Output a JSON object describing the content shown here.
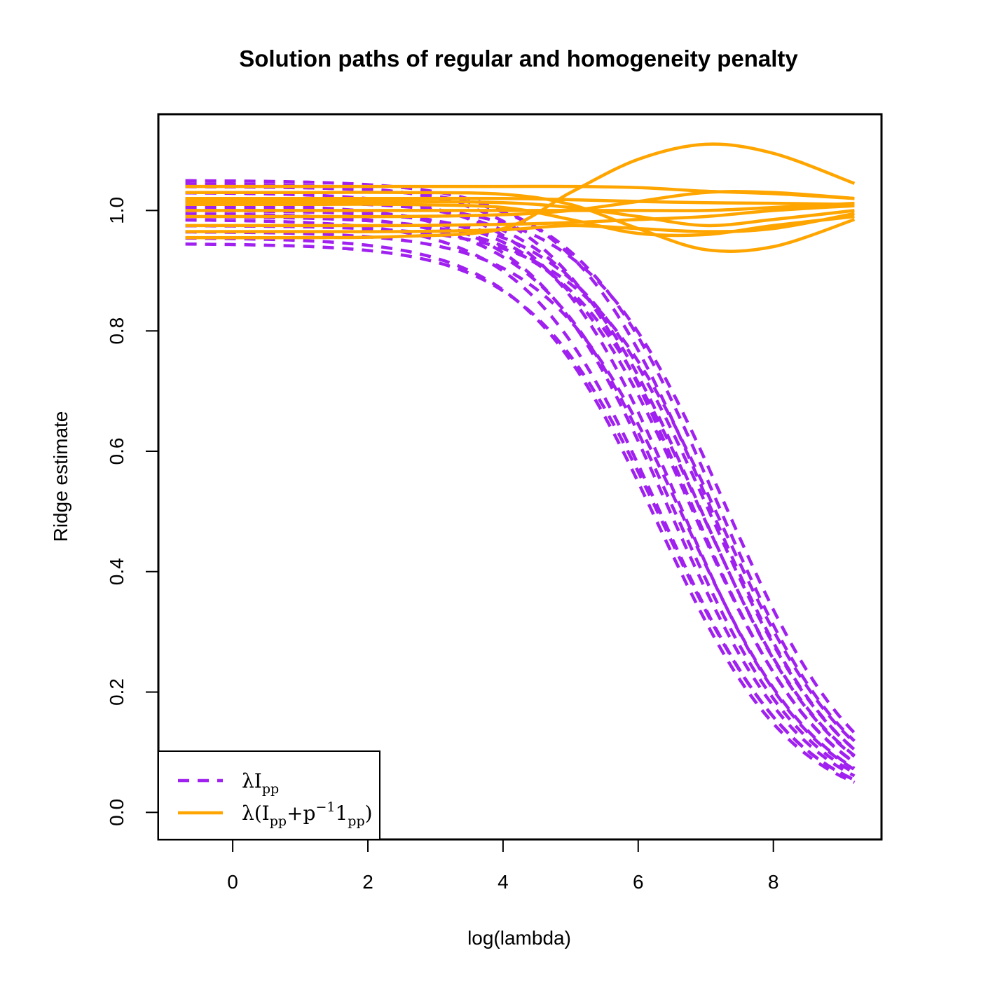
{
  "chart_data": {
    "type": "line",
    "title": "Solution paths of regular and homogeneity penalty",
    "xlabel": "log(lambda)",
    "ylabel": "Ridge estimate",
    "xlim": [
      -1.1,
      9.6
    ],
    "ylim": [
      -0.045,
      1.16
    ],
    "x_ticks": [
      0,
      2,
      4,
      6,
      8
    ],
    "x_tick_labels": [
      "0",
      "2",
      "4",
      "6",
      "8"
    ],
    "y_ticks": [
      0.0,
      0.2,
      0.4,
      0.6,
      0.8,
      1.0
    ],
    "y_tick_labels": [
      "0.0",
      "0.2",
      "0.4",
      "0.6",
      "0.8",
      "1.0"
    ],
    "grid": false,
    "legend": {
      "placement": "bottom-left",
      "entries": [
        {
          "label": "λI_pp",
          "color": "#A020F0",
          "style": "dashed"
        },
        {
          "label": "λ(I_pp+p^-1 1_pp)",
          "color": "#FFA500",
          "style": "solid"
        }
      ]
    },
    "x_range": [
      -0.7,
      9.2
    ],
    "series_groups": [
      {
        "name": "λI_pp",
        "color": "#A020F0",
        "style": "dashed",
        "model": "b0 / (1 + exp(x - c))",
        "b0": [
          1.05,
          1.045,
          1.04,
          1.03,
          1.02,
          1.015,
          1.01,
          1.005,
          1.0,
          0.995,
          0.99,
          0.985,
          0.975,
          0.965,
          0.955,
          0.945
        ],
        "c": [
          7.0,
          6.75,
          7.15,
          6.6,
          6.9,
          7.3,
          6.45,
          6.8,
          7.05,
          6.55,
          6.95,
          6.35,
          7.2,
          6.7,
          6.3,
          6.4
        ]
      },
      {
        "name": "λ(I_pp+p^-1 1_pp)",
        "color": "#FFA500",
        "style": "solid",
        "series": [
          {
            "x": [
              -0.7,
              1.0,
              2.5,
              4.0,
              5.0,
              6.0,
              7.0,
              8.0,
              9.2
            ],
            "y": [
              0.955,
              0.955,
              0.957,
              0.97,
              1.03,
              1.085,
              1.11,
              1.095,
              1.045
            ]
          },
          {
            "x": [
              -0.7,
              1.0,
              2.5,
              4.0,
              5.0,
              6.0,
              7.0,
              8.0,
              9.2
            ],
            "y": [
              1.04,
              1.04,
              1.04,
              1.04,
              1.04,
              1.038,
              1.032,
              1.028,
              1.02
            ]
          },
          {
            "x": [
              -0.7,
              1.0,
              2.5,
              4.0,
              5.0,
              6.0,
              7.0,
              8.0,
              9.2
            ],
            "y": [
              1.03,
              1.03,
              1.03,
              1.027,
              1.01,
              0.97,
              0.935,
              0.94,
              0.985
            ]
          },
          {
            "x": [
              -0.7,
              1.0,
              2.5,
              4.0,
              5.0,
              6.0,
              7.0,
              8.0,
              9.2
            ],
            "y": [
              1.02,
              1.02,
              1.02,
              1.02,
              1.018,
              1.015,
              1.013,
              1.012,
              1.01
            ]
          },
          {
            "x": [
              -0.7,
              1.0,
              2.5,
              4.0,
              5.0,
              6.0,
              7.0,
              8.0,
              9.2
            ],
            "y": [
              1.01,
              1.01,
              1.01,
              1.005,
              0.985,
              0.962,
              0.96,
              0.975,
              0.99
            ]
          },
          {
            "x": [
              -0.7,
              1.0,
              2.5,
              4.0,
              5.0,
              6.0,
              7.0,
              8.0,
              9.2
            ],
            "y": [
              1.0,
              1.0,
              1.0,
              1.0,
              1.0,
              1.0,
              1.0,
              1.005,
              1.012
            ]
          },
          {
            "x": [
              -0.7,
              1.0,
              2.5,
              4.0,
              5.0,
              6.0,
              7.0,
              8.0,
              9.2
            ],
            "y": [
              0.99,
              0.99,
              0.99,
              0.993,
              1.0,
              1.015,
              1.03,
              1.03,
              1.02
            ]
          },
          {
            "x": [
              -0.7,
              1.0,
              2.5,
              4.0,
              5.0,
              6.0,
              7.0,
              8.0,
              9.2
            ],
            "y": [
              0.975,
              0.975,
              0.975,
              0.977,
              0.98,
              0.985,
              0.99,
              1.0,
              1.008
            ]
          },
          {
            "x": [
              -0.7,
              1.0,
              2.5,
              4.0,
              5.0,
              6.0,
              7.0,
              8.0,
              9.2
            ],
            "y": [
              0.965,
              0.965,
              0.965,
              0.968,
              0.975,
              0.97,
              0.965,
              0.97,
              0.995
            ]
          },
          {
            "x": [
              -0.7,
              1.0,
              2.5,
              4.0,
              5.0,
              6.0,
              7.0,
              8.0,
              9.2
            ],
            "y": [
              1.015,
              1.015,
              1.015,
              1.013,
              1.005,
              0.99,
              0.975,
              0.985,
              1.0
            ]
          }
        ]
      }
    ]
  }
}
